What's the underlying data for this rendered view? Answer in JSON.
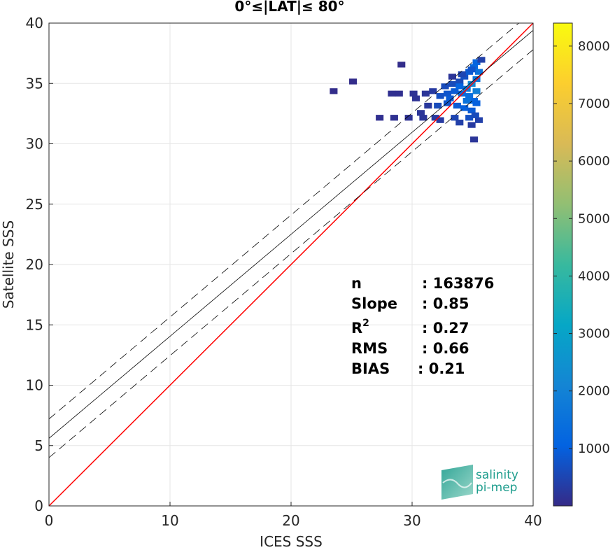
{
  "chart_data": {
    "type": "scatter",
    "title": "0°≤|LAT|≤ 80°",
    "xlabel": "ICES SSS",
    "ylabel": "Satellite SSS",
    "xlim": [
      0,
      40
    ],
    "ylim": [
      0,
      40
    ],
    "xticks": [
      "0",
      "10",
      "20",
      "30",
      "40"
    ],
    "yticks": [
      "0",
      "5",
      "10",
      "15",
      "20",
      "25",
      "30",
      "35",
      "40"
    ],
    "grid": true,
    "lines": [
      {
        "role": "identity",
        "color": "#ff0000",
        "intercept": 0,
        "slope": 1,
        "style": "solid"
      },
      {
        "role": "regression",
        "color": "#000000",
        "intercept": 5.6,
        "slope": 0.845,
        "style": "solid"
      },
      {
        "role": "regression_upper",
        "color": "#000000",
        "intercept": 7.2,
        "slope": 0.845,
        "style": "dashed"
      },
      {
        "role": "regression_lower",
        "color": "#000000",
        "intercept": 4.0,
        "slope": 0.845,
        "style": "dashed"
      }
    ],
    "density_cells": [
      [
        33.6,
        35.0,
        600
      ],
      [
        34.0,
        35.4,
        700
      ],
      [
        34.4,
        35.8,
        900
      ],
      [
        34.8,
        36.2,
        1200
      ],
      [
        35.0,
        36.6,
        1100
      ],
      [
        34.2,
        34.4,
        1800
      ],
      [
        34.6,
        34.8,
        2200
      ],
      [
        35.0,
        35.2,
        1600
      ],
      [
        34.4,
        33.8,
        1400
      ],
      [
        34.8,
        33.4,
        1200
      ],
      [
        33.8,
        34.0,
        1300
      ],
      [
        33.2,
        34.2,
        900
      ],
      [
        32.6,
        34.0,
        800
      ],
      [
        32.0,
        33.8,
        700
      ],
      [
        31.8,
        33.0,
        600
      ],
      [
        32.6,
        33.2,
        800
      ],
      [
        33.4,
        33.0,
        900
      ],
      [
        34.0,
        32.8,
        1000
      ],
      [
        34.6,
        32.6,
        900
      ],
      [
        35.0,
        33.2,
        1000
      ],
      [
        33.0,
        34.8,
        600
      ],
      [
        31.4,
        34.2,
        300
      ],
      [
        30.8,
        34.0,
        200
      ],
      [
        29.8,
        34.0,
        150
      ],
      [
        28.6,
        34.0,
        100
      ],
      [
        28.0,
        34.0,
        100
      ],
      [
        27.0,
        32.0,
        100
      ],
      [
        28.2,
        32.0,
        120
      ],
      [
        29.4,
        32.0,
        150
      ],
      [
        30.6,
        32.0,
        200
      ],
      [
        31.6,
        32.0,
        300
      ],
      [
        33.2,
        32.0,
        500
      ],
      [
        34.4,
        32.0,
        700
      ],
      [
        33.6,
        31.6,
        400
      ],
      [
        34.6,
        31.4,
        300
      ],
      [
        34.8,
        30.2,
        200
      ],
      [
        35.2,
        31.8,
        400
      ],
      [
        32.0,
        31.8,
        300
      ],
      [
        23.2,
        34.2,
        50
      ],
      [
        24.8,
        35.0,
        50
      ],
      [
        28.8,
        36.4,
        50
      ],
      [
        33.0,
        35.4,
        200
      ],
      [
        35.2,
        35.8,
        1500
      ],
      [
        35.4,
        36.8,
        400
      ],
      [
        34.6,
        36.0,
        800
      ],
      [
        33.8,
        35.6,
        500
      ],
      [
        32.4,
        34.6,
        600
      ],
      [
        30.0,
        33.6,
        150
      ],
      [
        33.6,
        34.6,
        1100
      ],
      [
        34.2,
        33.4,
        1500
      ],
      [
        35.0,
        34.2,
        1900
      ],
      [
        32.8,
        33.6,
        900
      ],
      [
        31.0,
        33.0,
        250
      ],
      [
        30.4,
        32.4,
        200
      ],
      [
        34.9,
        32.2,
        600
      ]
    ],
    "colorbar": {
      "min": 0,
      "max": 8400,
      "ticks": [
        "1000",
        "2000",
        "3000",
        "4000",
        "5000",
        "6000",
        "7000",
        "8000"
      ],
      "colormap": "parula"
    },
    "annotations": {
      "stats": [
        {
          "label": "n",
          "value": ": 163876"
        },
        {
          "label": "Slope",
          "value": ": 0.85"
        },
        {
          "label": "R",
          "sup": "2",
          "value": ": 0.27"
        },
        {
          "label": "RMS",
          "value": ": 0.66"
        },
        {
          "label": "BIAS",
          "value": ": 0.21"
        }
      ]
    },
    "logo": {
      "line1": "salinity",
      "line2": "pi-mep"
    }
  }
}
